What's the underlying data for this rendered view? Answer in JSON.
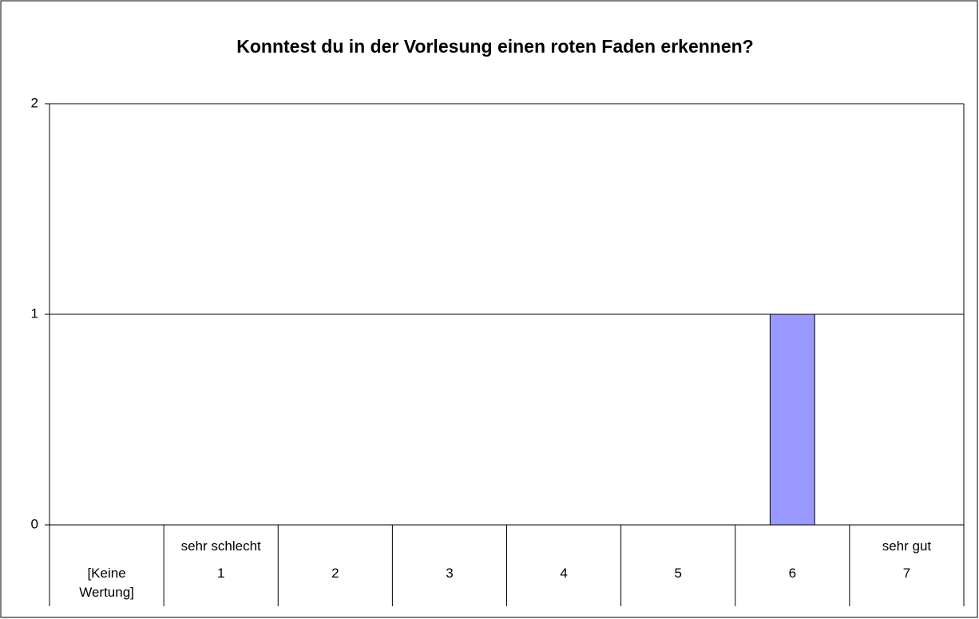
{
  "chart_data": {
    "type": "bar",
    "title": "Konntest du in der Vorlesung einen roten Faden erkennen?",
    "categories": [
      "[Keine\nWertung]",
      "sehr schlecht\n1",
      "2",
      "3",
      "4",
      "5",
      "6",
      "sehr gut\n7"
    ],
    "values": [
      0,
      0,
      0,
      0,
      0,
      0,
      1,
      0
    ],
    "color": "#9999ff",
    "ylim": [
      0,
      2
    ],
    "yticks": [
      0,
      1,
      2
    ],
    "grid": true
  }
}
